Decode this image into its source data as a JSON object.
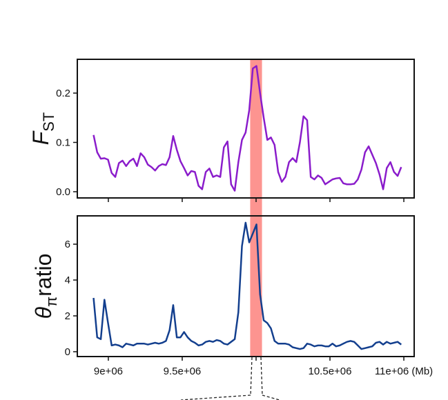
{
  "chart_data": [
    {
      "type": "line",
      "ylabel": "F",
      "ylabel_sub": "ST",
      "xlim": [
        8790000,
        11070000
      ],
      "xticks": [
        9000000,
        9500000,
        10000000,
        10500000,
        11000000
      ],
      "xtick_labels": false,
      "ylim": [
        -0.0126,
        0.2685
      ],
      "yticks": [
        {
          "value": 0,
          "label": "0.0"
        },
        0.1,
        0.2
      ],
      "highlight": [
        9960000,
        10040000
      ],
      "highlight_color": "#fd9490",
      "x": [
        8900000,
        8924500,
        8949000,
        8973500,
        8998000,
        9022500,
        9047000,
        9071500,
        9096000,
        9120500,
        9145000,
        9169500,
        9194000,
        9218500,
        9243000,
        9267500,
        9292000,
        9316500,
        9341000,
        9365500,
        9390000,
        9414500,
        9439000,
        9463500,
        9488000,
        9512500,
        9537000,
        9561500,
        9586000,
        9610500,
        9635000,
        9659500,
        9684000,
        9708500,
        9733000,
        9757500,
        9782000,
        9806500,
        9831000,
        9855500,
        9880000,
        9904500,
        9929000,
        9953500,
        9978000,
        10002500,
        10027000,
        10051500,
        10076000,
        10100500,
        10125000,
        10149500,
        10174000,
        10198500,
        10223000,
        10247500,
        10272000,
        10296500,
        10321000,
        10345500,
        10370000,
        10394500,
        10419000,
        10443500,
        10468000,
        10492500,
        10517000,
        10541500,
        10566000,
        10590500,
        10615000,
        10639500,
        10664000,
        10688500,
        10713000,
        10737500,
        10762000,
        10786500,
        10811000,
        10835500,
        10860000,
        10884500,
        10909000,
        10933500,
        10958000,
        10982500
      ],
      "series": [
        {
          "name": "FST",
          "color": "#8a1ccb",
          "values": [
            0.115,
            0.08,
            0.067,
            0.068,
            0.065,
            0.038,
            0.03,
            0.058,
            0.063,
            0.052,
            0.062,
            0.067,
            0.052,
            0.078,
            0.07,
            0.055,
            0.05,
            0.043,
            0.052,
            0.056,
            0.054,
            0.07,
            0.113,
            0.085,
            0.062,
            0.048,
            0.033,
            0.042,
            0.04,
            0.012,
            0.005,
            0.04,
            0.047,
            0.03,
            0.033,
            0.03,
            0.09,
            0.102,
            0.015,
            0.002,
            0.06,
            0.105,
            0.12,
            0.165,
            0.25,
            0.255,
            0.2,
            0.15,
            0.105,
            0.11,
            0.095,
            0.04,
            0.02,
            0.03,
            0.06,
            0.068,
            0.06,
            0.1,
            0.153,
            0.145,
            0.03,
            0.025,
            0.033,
            0.028,
            0.015,
            0.02,
            0.025,
            0.027,
            0.028,
            0.017,
            0.015,
            0.015,
            0.016,
            0.025,
            0.045,
            0.08,
            0.092,
            0.075,
            0.058,
            0.035,
            0.005,
            0.048,
            0.06,
            0.04,
            0.032,
            0.05
          ]
        }
      ]
    },
    {
      "type": "line",
      "ylabel": "θ",
      "ylabel_sub": "π",
      "ylabel_tail": "ratio",
      "xlim": [
        8790000,
        11070000
      ],
      "xticks": [
        {
          "value": 9000000,
          "label": "9e+06"
        },
        {
          "value": 9500000,
          "label": "9.5e+06"
        },
        {
          "value": 10000000,
          "label": null
        },
        {
          "value": 10500000,
          "label": "10.5e+06"
        },
        {
          "value": 11000000,
          "label": "11e+06 (Mb)"
        }
      ],
      "ylim": [
        -0.27,
        7.58
      ],
      "yticks": [
        0,
        2,
        4,
        6
      ],
      "highlight": [
        9960000,
        10040000
      ],
      "highlight_color": "#fd9490",
      "x": [
        8900000,
        8924500,
        8949000,
        8973500,
        8998000,
        9022500,
        9047000,
        9071500,
        9096000,
        9120500,
        9145000,
        9169500,
        9194000,
        9218500,
        9243000,
        9267500,
        9292000,
        9316500,
        9341000,
        9365500,
        9390000,
        9414500,
        9439000,
        9463500,
        9488000,
        9512500,
        9537000,
        9561500,
        9586000,
        9610500,
        9635000,
        9659500,
        9684000,
        9708500,
        9733000,
        9757500,
        9782000,
        9806500,
        9831000,
        9855500,
        9880000,
        9904500,
        9929000,
        9953500,
        9978000,
        10002500,
        10027000,
        10051500,
        10076000,
        10100500,
        10125000,
        10149500,
        10174000,
        10198500,
        10223000,
        10247500,
        10272000,
        10296500,
        10321000,
        10345500,
        10370000,
        10394500,
        10419000,
        10443500,
        10468000,
        10492500,
        10517000,
        10541500,
        10566000,
        10590500,
        10615000,
        10639500,
        10664000,
        10688500,
        10713000,
        10737500,
        10762000,
        10786500,
        10811000,
        10835500,
        10860000,
        10884500,
        10909000,
        10933500,
        10958000,
        10982500
      ],
      "series": [
        {
          "name": "θπ ratio",
          "color": "#133f8e",
          "values": [
            3.0,
            0.8,
            0.7,
            2.9,
            1.6,
            0.35,
            0.4,
            0.35,
            0.25,
            0.45,
            0.4,
            0.35,
            0.45,
            0.45,
            0.45,
            0.4,
            0.45,
            0.5,
            0.45,
            0.5,
            0.6,
            1.2,
            2.6,
            0.8,
            0.8,
            1.1,
            0.8,
            0.6,
            0.5,
            0.35,
            0.4,
            0.55,
            0.6,
            0.55,
            0.65,
            0.6,
            0.45,
            0.4,
            0.55,
            0.7,
            2.2,
            5.9,
            7.2,
            6.1,
            6.6,
            7.1,
            3.2,
            1.75,
            1.6,
            1.3,
            0.6,
            0.45,
            0.45,
            0.45,
            0.4,
            0.25,
            0.2,
            0.15,
            0.2,
            0.45,
            0.4,
            0.3,
            0.35,
            0.35,
            0.3,
            0.3,
            0.45,
            0.3,
            0.35,
            0.45,
            0.55,
            0.6,
            0.55,
            0.35,
            0.15,
            0.2,
            0.25,
            0.3,
            0.5,
            0.55,
            0.4,
            0.55,
            0.45,
            0.5,
            0.55,
            0.4
          ]
        }
      ]
    }
  ]
}
